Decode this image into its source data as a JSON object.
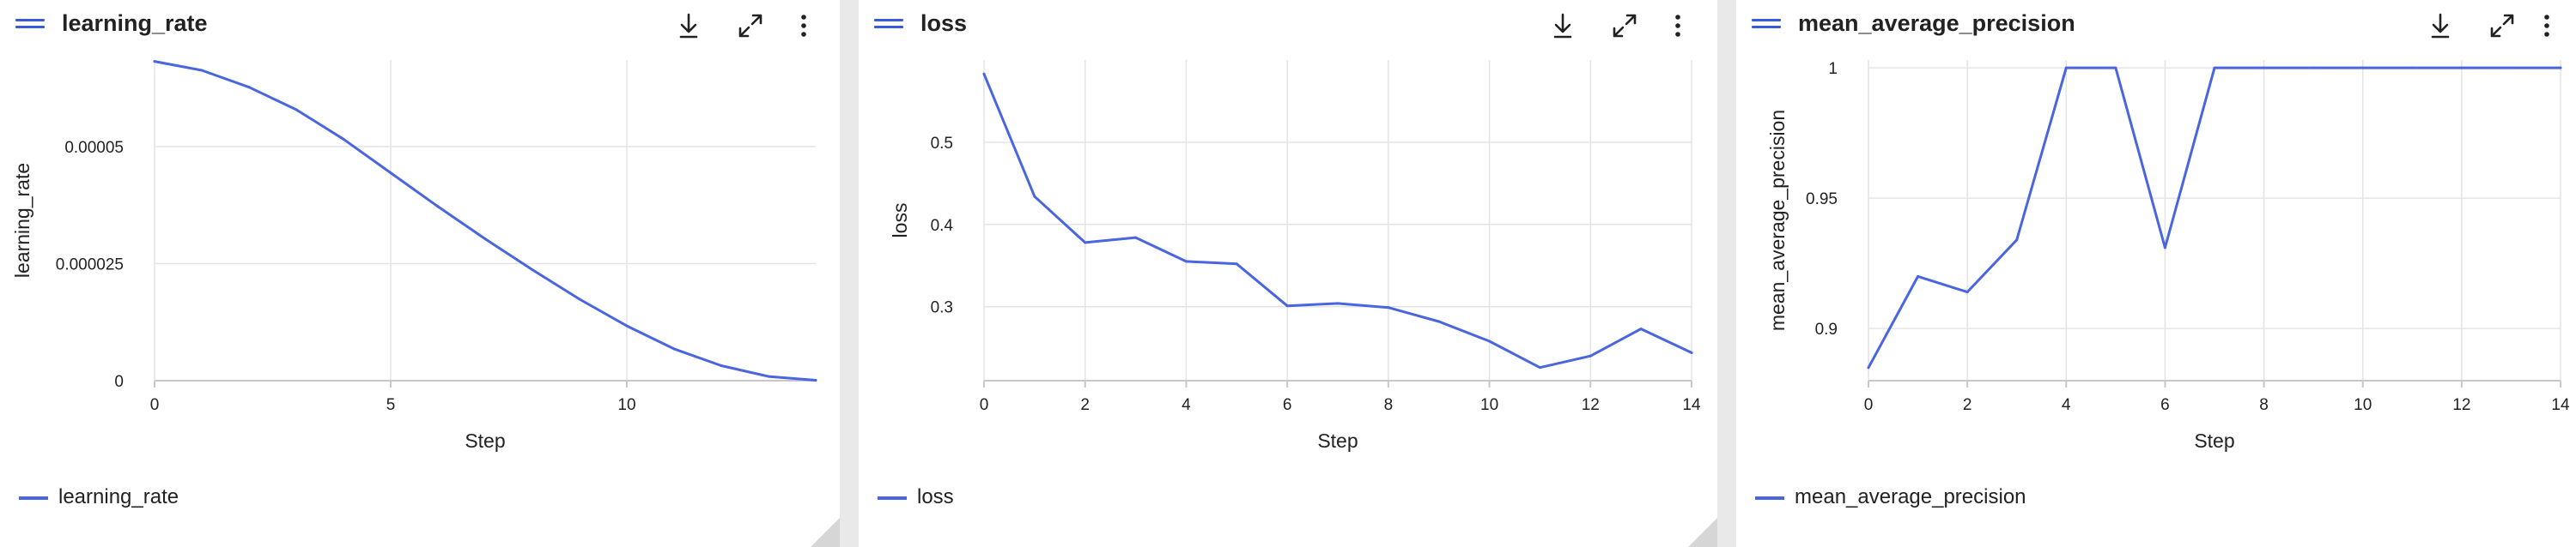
{
  "colors": {
    "series": "#4a65e0",
    "grid": "#e4e4e4",
    "axis": "#c8c8c8",
    "drag_icon": "#3a5bd9"
  },
  "icons": [
    "drag-handle-icon",
    "download-icon",
    "expand-icon",
    "more-vertical-icon"
  ],
  "cards": [
    {
      "title": "learning_rate",
      "legend_label": "learning_rate"
    },
    {
      "title": "loss",
      "legend_label": "loss"
    },
    {
      "title": "mean_average_precision",
      "legend_label": "mean_average_precision"
    }
  ],
  "chart_data": [
    {
      "type": "line",
      "xlabel": "Step",
      "ylabel": "learning_rate",
      "xlim": [
        0,
        14
      ],
      "ylim": [
        0,
        6.85e-05
      ],
      "xticks": [
        0,
        5,
        10
      ],
      "xtick_labels": [
        "0",
        "5",
        "10"
      ],
      "yticks": [
        0,
        2.5e-05,
        5e-05
      ],
      "ytick_labels": [
        "0",
        "0.000025",
        "0.00005"
      ],
      "grid": true,
      "legend": "bottom-left",
      "series": [
        {
          "name": "learning_rate",
          "x": [
            0,
            1,
            2,
            3,
            4,
            5,
            6,
            7,
            8,
            9,
            10,
            11,
            12,
            13,
            14
          ],
          "y": [
            6.82e-05,
            6.63e-05,
            6.27e-05,
            5.79e-05,
            5.16e-05,
            4.44e-05,
            3.72e-05,
            3.03e-05,
            2.37e-05,
            1.74e-05,
            1.17e-05,
            6.8e-06,
            3.2e-06,
            9e-07,
            1e-07
          ]
        }
      ]
    },
    {
      "type": "line",
      "xlabel": "Step",
      "ylabel": "loss",
      "xlim": [
        0,
        14
      ],
      "ylim": [
        0.21,
        0.6
      ],
      "xticks": [
        0,
        2,
        4,
        6,
        8,
        10,
        12,
        14
      ],
      "xtick_labels": [
        "0",
        "2",
        "4",
        "6",
        "8",
        "10",
        "12",
        "14"
      ],
      "yticks": [
        0.3,
        0.4,
        0.5
      ],
      "ytick_labels": [
        "0.3",
        "0.4",
        "0.5"
      ],
      "grid": true,
      "legend": "bottom-left",
      "series": [
        {
          "name": "loss",
          "x": [
            0,
            1,
            2,
            3,
            4,
            5,
            6,
            7,
            8,
            9,
            10,
            11,
            12,
            13,
            14
          ],
          "y": [
            0.583,
            0.434,
            0.378,
            0.384,
            0.355,
            0.352,
            0.301,
            0.304,
            0.299,
            0.282,
            0.258,
            0.226,
            0.24,
            0.273,
            0.244
          ]
        }
      ]
    },
    {
      "type": "line",
      "xlabel": "Step",
      "ylabel": "mean_average_precision",
      "xlim": [
        0,
        14
      ],
      "ylim": [
        0.88,
        1.003
      ],
      "xticks": [
        0,
        2,
        4,
        6,
        8,
        10,
        12,
        14
      ],
      "xtick_labels": [
        "0",
        "2",
        "4",
        "6",
        "8",
        "10",
        "12",
        "14"
      ],
      "yticks": [
        0.9,
        0.95,
        1
      ],
      "ytick_labels": [
        "0.9",
        "0.95",
        "1"
      ],
      "grid": true,
      "legend": "bottom-left",
      "series": [
        {
          "name": "mean_average_precision",
          "x": [
            0,
            1,
            2,
            3,
            4,
            5,
            6,
            7,
            8,
            9,
            10,
            11,
            12,
            13,
            14
          ],
          "y": [
            0.885,
            0.92,
            0.914,
            0.934,
            1.0,
            1.0,
            0.931,
            1.0,
            1.0,
            1.0,
            1.0,
            1.0,
            1.0,
            1.0,
            1.0
          ]
        }
      ]
    }
  ]
}
